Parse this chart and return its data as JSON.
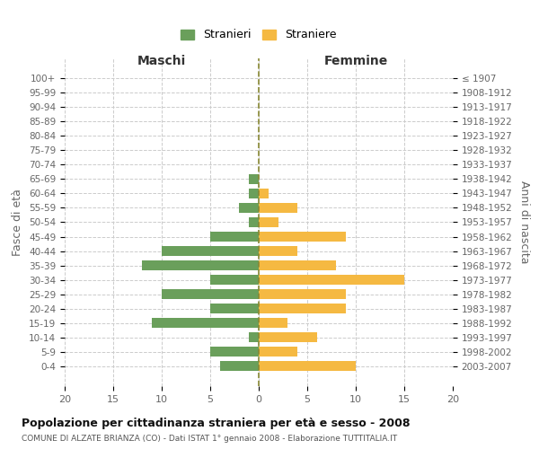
{
  "age_groups": [
    "100+",
    "95-99",
    "90-94",
    "85-89",
    "80-84",
    "75-79",
    "70-74",
    "65-69",
    "60-64",
    "55-59",
    "50-54",
    "45-49",
    "40-44",
    "35-39",
    "30-34",
    "25-29",
    "20-24",
    "15-19",
    "10-14",
    "5-9",
    "0-4"
  ],
  "birth_years": [
    "≤ 1907",
    "1908-1912",
    "1913-1917",
    "1918-1922",
    "1923-1927",
    "1928-1932",
    "1933-1937",
    "1938-1942",
    "1943-1947",
    "1948-1952",
    "1953-1957",
    "1958-1962",
    "1963-1967",
    "1968-1972",
    "1973-1977",
    "1978-1982",
    "1983-1987",
    "1988-1992",
    "1993-1997",
    "1998-2002",
    "2003-2007"
  ],
  "males": [
    0,
    0,
    0,
    0,
    0,
    0,
    0,
    1,
    1,
    2,
    1,
    5,
    10,
    12,
    5,
    10,
    5,
    11,
    1,
    5,
    4
  ],
  "females": [
    0,
    0,
    0,
    0,
    0,
    0,
    0,
    0,
    1,
    4,
    2,
    9,
    4,
    8,
    15,
    9,
    9,
    3,
    6,
    4,
    10
  ],
  "male_color": "#6a9f5b",
  "female_color": "#f5b942",
  "bg_color": "#ffffff",
  "grid_color": "#cccccc",
  "title": "Popolazione per cittadinanza straniera per età e sesso - 2008",
  "subtitle": "COMUNE DI ALZATE BRIANZA (CO) - Dati ISTAT 1° gennaio 2008 - Elaborazione TUTTITALIA.IT",
  "xlabel_left": "Maschi",
  "xlabel_right": "Femmine",
  "ylabel_left": "Fasce di età",
  "ylabel_right": "Anni di nascita",
  "legend_male": "Stranieri",
  "legend_female": "Straniere",
  "xlim": 20
}
